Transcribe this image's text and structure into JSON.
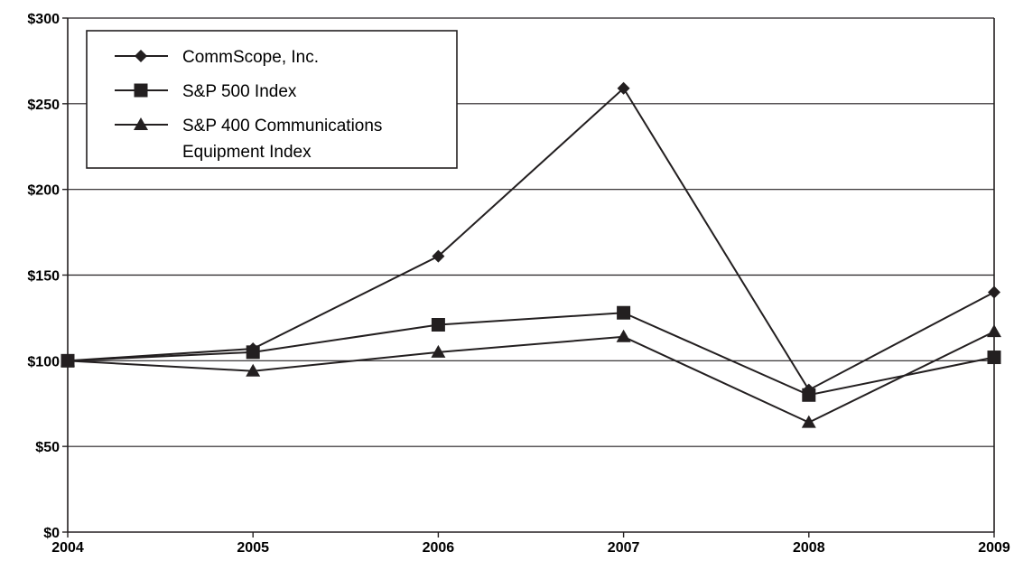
{
  "chart_data": {
    "type": "line",
    "x": [
      "2004",
      "2005",
      "2006",
      "2007",
      "2008",
      "2009"
    ],
    "ylim": [
      0,
      300
    ],
    "yticks": [
      {
        "value": 0,
        "label": "$0"
      },
      {
        "value": 50,
        "label": "$50"
      },
      {
        "value": 100,
        "label": "$100"
      },
      {
        "value": 150,
        "label": "$150"
      },
      {
        "value": 200,
        "label": "$200"
      },
      {
        "value": 250,
        "label": "$250"
      },
      {
        "value": 300,
        "label": "$300"
      }
    ],
    "grid": "horizontal",
    "legend_position": "top-left",
    "series": [
      {
        "name": "CommScope, Inc.",
        "marker": "diamond",
        "values": [
          100,
          107,
          161,
          259,
          83,
          140
        ]
      },
      {
        "name": "S&P 500 Index",
        "marker": "square",
        "values": [
          100,
          105,
          121,
          128,
          80,
          102
        ]
      },
      {
        "name": "S&P 400 Communications Equipment Index",
        "name_lines": [
          "S&P 400 Communications",
          "Equipment Index"
        ],
        "marker": "triangle",
        "values": [
          100,
          94,
          105,
          114,
          64,
          117
        ]
      }
    ],
    "colors": {
      "line": "#231f20",
      "grid": "#231f20",
      "background": "#ffffff"
    }
  }
}
